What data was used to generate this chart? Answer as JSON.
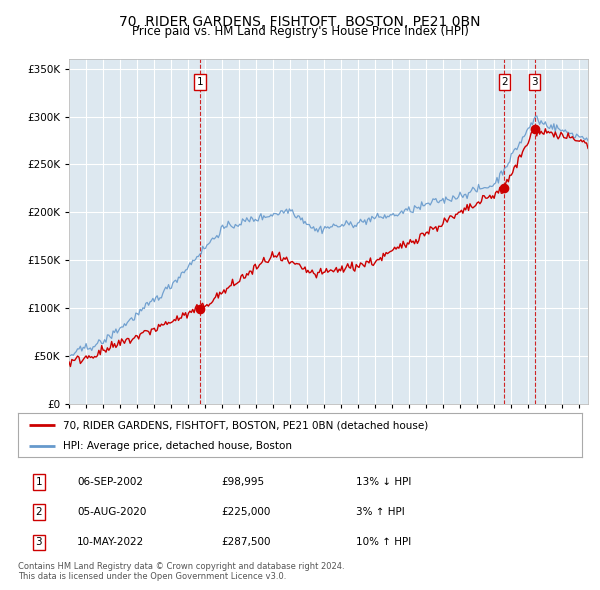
{
  "title": "70, RIDER GARDENS, FISHTOFT, BOSTON, PE21 0BN",
  "subtitle": "Price paid vs. HM Land Registry's House Price Index (HPI)",
  "legend_line1": "70, RIDER GARDENS, FISHTOFT, BOSTON, PE21 0BN (detached house)",
  "legend_line2": "HPI: Average price, detached house, Boston",
  "transactions": [
    {
      "num": 1,
      "date": "06-SEP-2002",
      "price": 98995,
      "pct": "13%",
      "dir": "↓",
      "year": 2002.68
    },
    {
      "num": 2,
      "date": "05-AUG-2020",
      "price": 225000,
      "pct": "3%",
      "dir": "↑",
      "year": 2020.59
    },
    {
      "num": 3,
      "date": "10-MAY-2022",
      "price": 287500,
      "pct": "10%",
      "dir": "↑",
      "year": 2022.36
    }
  ],
  "property_color": "#cc0000",
  "hpi_color": "#6699cc",
  "plot_bg_color": "#dde8f0",
  "fig_bg_color": "#ffffff",
  "grid_color": "#ffffff",
  "vline_color": "#cc0000",
  "ylim": [
    0,
    360000
  ],
  "yticks": [
    0,
    50000,
    100000,
    150000,
    200000,
    250000,
    300000,
    350000
  ],
  "xlim_start": 1995.0,
  "xlim_end": 2025.5,
  "table_rows": [
    [
      "1",
      "06-SEP-2002",
      "£98,995",
      "13% ↓ HPI"
    ],
    [
      "2",
      "05-AUG-2020",
      "£225,000",
      "3% ↑ HPI"
    ],
    [
      "3",
      "10-MAY-2022",
      "£287,500",
      "10% ↑ HPI"
    ]
  ],
  "footer": "Contains HM Land Registry data © Crown copyright and database right 2024.\nThis data is licensed under the Open Government Licence v3.0."
}
